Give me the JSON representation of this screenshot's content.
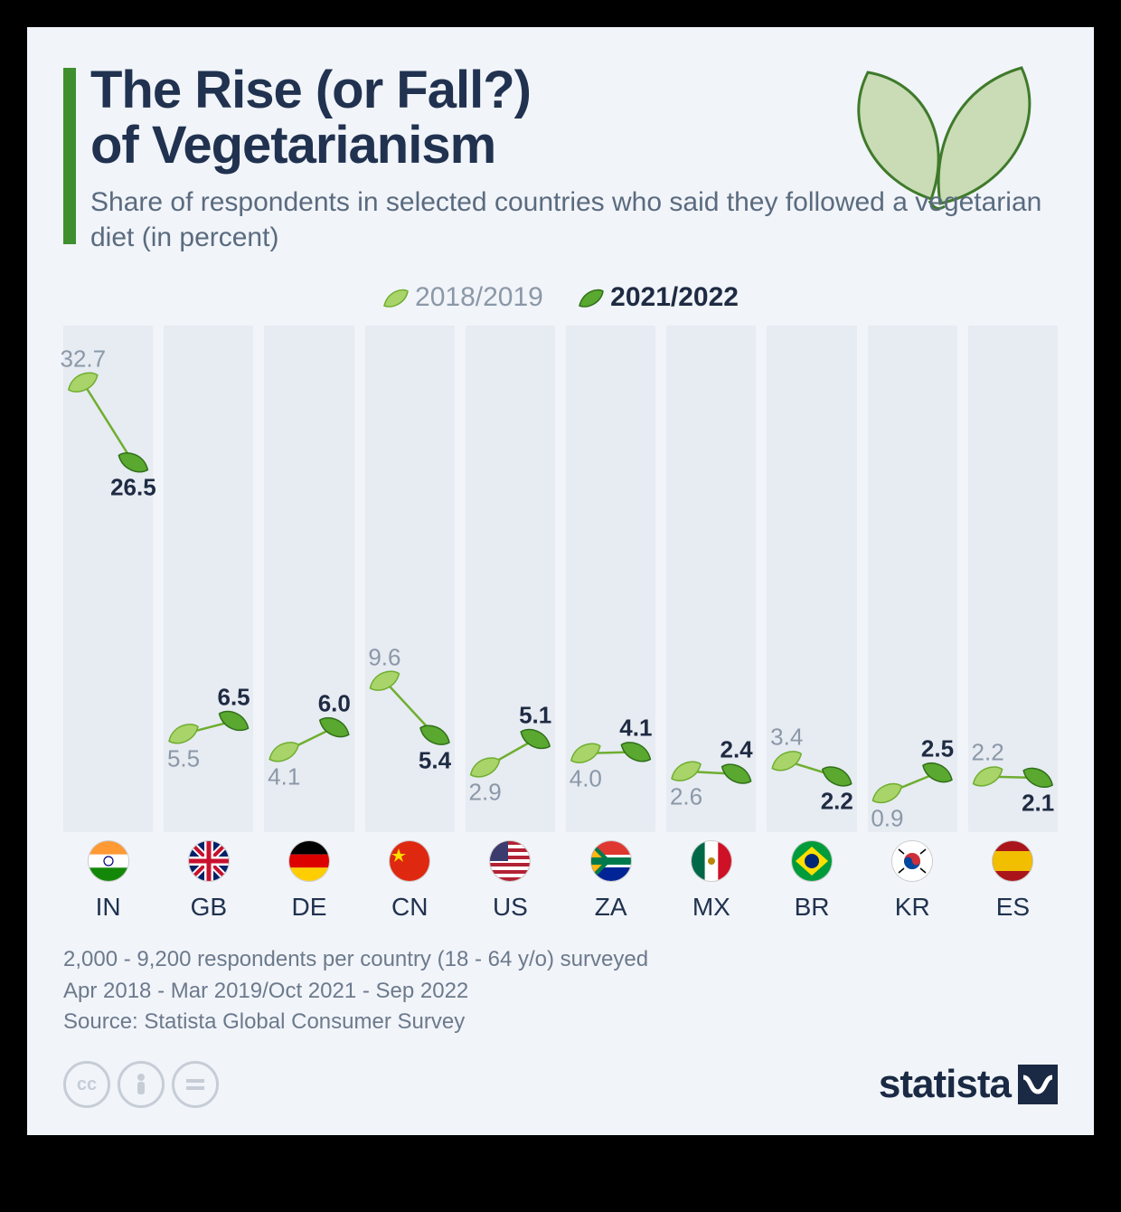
{
  "title_line1": "The Rise (or Fall?)",
  "title_line2": "of Vegetarianism",
  "subtitle": "Share of respondents in selected countries who said they followed a vegetarian diet (in percent)",
  "legend": {
    "old": "2018/2019",
    "new": "2021/2022"
  },
  "chart": {
    "type": "slope-points",
    "y_max": 35,
    "y_min": 0,
    "band_bg": "#e7ebf2",
    "page_bg": "#f1f4f9",
    "leaf_old_fill": "#a9d46a",
    "leaf_old_stroke": "#6fae2f",
    "leaf_new_fill": "#5aa82f",
    "leaf_new_stroke": "#2f6f1a",
    "line_color": "#6fae2f",
    "old_text_color": "#8b98a8",
    "new_text_color": "#1e2b42",
    "title_color": "#20324f",
    "accent_bar_color": "#3f8f2f",
    "countries": [
      {
        "code": "IN",
        "old": 32.7,
        "new": 26.5,
        "old_above": true,
        "new_above": false,
        "flag": "in"
      },
      {
        "code": "GB",
        "old": 5.5,
        "new": 6.5,
        "old_above": false,
        "new_above": true,
        "flag": "gb"
      },
      {
        "code": "DE",
        "old": 4.1,
        "new": 6.0,
        "old_above": false,
        "new_above": true,
        "flag": "de"
      },
      {
        "code": "CN",
        "old": 9.6,
        "new": 5.4,
        "old_above": true,
        "new_above": false,
        "flag": "cn"
      },
      {
        "code": "US",
        "old": 2.9,
        "new": 5.1,
        "old_above": false,
        "new_above": true,
        "flag": "us"
      },
      {
        "code": "ZA",
        "old": 4.0,
        "new": 4.1,
        "old_above": false,
        "new_above": true,
        "flag": "za"
      },
      {
        "code": "MX",
        "old": 2.6,
        "new": 2.4,
        "old_above": false,
        "new_above": true,
        "flag": "mx"
      },
      {
        "code": "BR",
        "old": 3.4,
        "new": 2.2,
        "old_above": true,
        "new_above": false,
        "flag": "br"
      },
      {
        "code": "KR",
        "old": 0.9,
        "new": 2.5,
        "old_above": false,
        "new_above": true,
        "flag": "kr"
      },
      {
        "code": "ES",
        "old": 2.2,
        "new": 2.1,
        "old_above": true,
        "new_above": false,
        "flag": "es"
      }
    ]
  },
  "notes": [
    "2,000 - 9,200 respondents per country (18 - 64 y/o) surveyed",
    "Apr 2018 - Mar 2019/Oct 2021 - Sep 2022",
    "Source: Statista Global Consumer Survey"
  ],
  "brand": "statista"
}
